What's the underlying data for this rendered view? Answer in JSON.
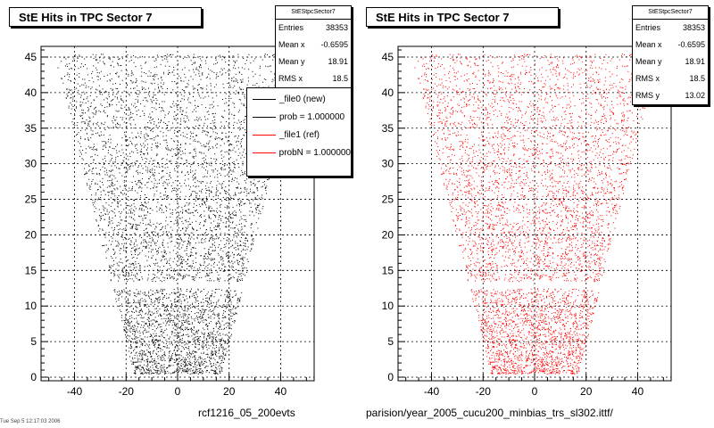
{
  "colors": {
    "series_new": "#000000",
    "series_ref": "#ff0000",
    "grid": "#000000"
  },
  "left_pad": {
    "title": "StE Hits in TPC Sector 7",
    "stats": {
      "header": "StEStpcSector7",
      "rows": [
        {
          "label": "Entries",
          "value": "38353"
        },
        {
          "label": "Mean x",
          "value": "-0.6595"
        },
        {
          "label": "Mean y",
          "value": "18.91"
        },
        {
          "label": "RMS x",
          "value": "18.5"
        }
      ]
    },
    "legend": {
      "entries": [
        {
          "label": "_file0 (new)"
        },
        {
          "label": "prob = 1.000000"
        },
        {
          "label": "_file1 (ref)"
        },
        {
          "label": "probN = 1.000000"
        }
      ]
    },
    "bottom_label": "rcf1216_05_200evts"
  },
  "right_pad": {
    "title": "StE Hits in TPC Sector 7",
    "stats": {
      "header": "StEStpcSector7",
      "rows": [
        {
          "label": "Entries",
          "value": "38353"
        },
        {
          "label": "Mean x",
          "value": "-0.6595"
        },
        {
          "label": "Mean y",
          "value": "18.91"
        },
        {
          "label": "RMS x",
          "value": "18.5"
        },
        {
          "label": "RMS y",
          "value": "13.02"
        }
      ]
    },
    "bottom_label": "parision/year_2005_cucu200_minbias_trs_sl302.ittf/"
  },
  "tiny_label": "Tue Sep  5 12:17:03 2006",
  "chart_data": [
    {
      "type": "scatter",
      "title": "StE Hits in TPC Sector 7",
      "series": [
        {
          "name": "_file0 (new)",
          "color": "#000000"
        }
      ],
      "xlim": [
        -53,
        53
      ],
      "ylim": [
        -0.5,
        46.5
      ],
      "xticks": [
        -40,
        -20,
        0,
        20,
        40
      ],
      "yticks": [
        0,
        5,
        10,
        15,
        20,
        25,
        30,
        35,
        40,
        45
      ],
      "grid": true,
      "entries": 38353,
      "mean_x": -0.6595,
      "mean_y": 18.91,
      "rms_x": 18.5,
      "shape": {
        "y_min": 0.5,
        "y_max": 45.5,
        "half_width_at_y_min": 17,
        "half_width_at_y_max": 48,
        "row_gap_y": [
          12.5,
          13.5
        ]
      }
    },
    {
      "type": "scatter",
      "title": "StE Hits in TPC Sector 7",
      "series": [
        {
          "name": "_file1 (ref)",
          "color": "#ff0000"
        }
      ],
      "xlim": [
        -53,
        53
      ],
      "ylim": [
        -0.5,
        46.5
      ],
      "xticks": [
        -40,
        -20,
        0,
        20,
        40
      ],
      "yticks": [
        0,
        5,
        10,
        15,
        20,
        25,
        30,
        35,
        40,
        45
      ],
      "grid": true,
      "entries": 38353,
      "mean_x": -0.6595,
      "mean_y": 18.91,
      "rms_x": 18.5,
      "rms_y": 13.02,
      "shape": {
        "y_min": 0.5,
        "y_max": 45.5,
        "half_width_at_y_min": 17,
        "half_width_at_y_max": 48,
        "row_gap_y": [
          12.5,
          13.5
        ]
      }
    }
  ]
}
